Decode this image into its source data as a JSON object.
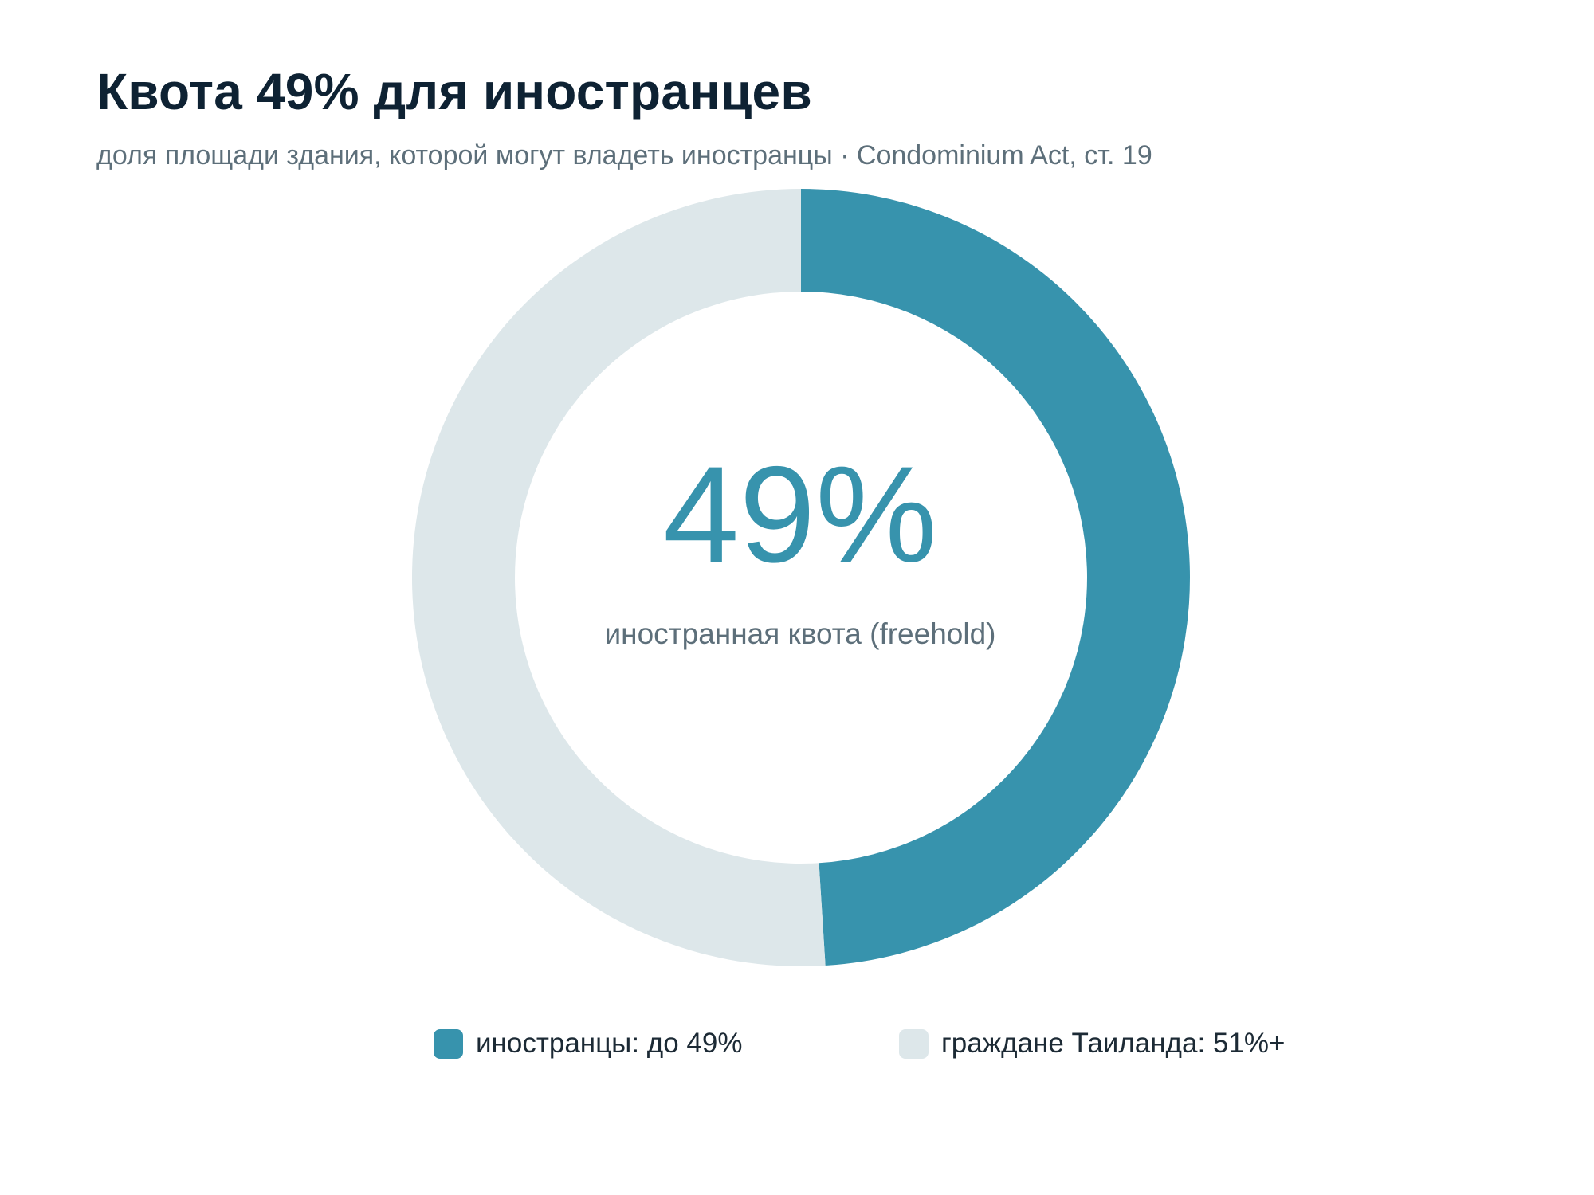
{
  "chart_data": {
    "type": "pie",
    "variant": "donut",
    "title": "Квота 49% для иностранцев",
    "subtitle": "доля площади здания, которой могут владеть иностранцы · Condominium Act, ст. 19",
    "center_value": "49%",
    "center_label": "иностранная квота (freehold)",
    "slices": [
      {
        "label": "иностранцы: до 49%",
        "value": 49,
        "color": "#3793ad"
      },
      {
        "label": "граждане Таиланда: 51%+",
        "value": 51,
        "color": "#dde7ea"
      }
    ],
    "legend_position": "bottom",
    "accent_color": "#3793ad"
  }
}
